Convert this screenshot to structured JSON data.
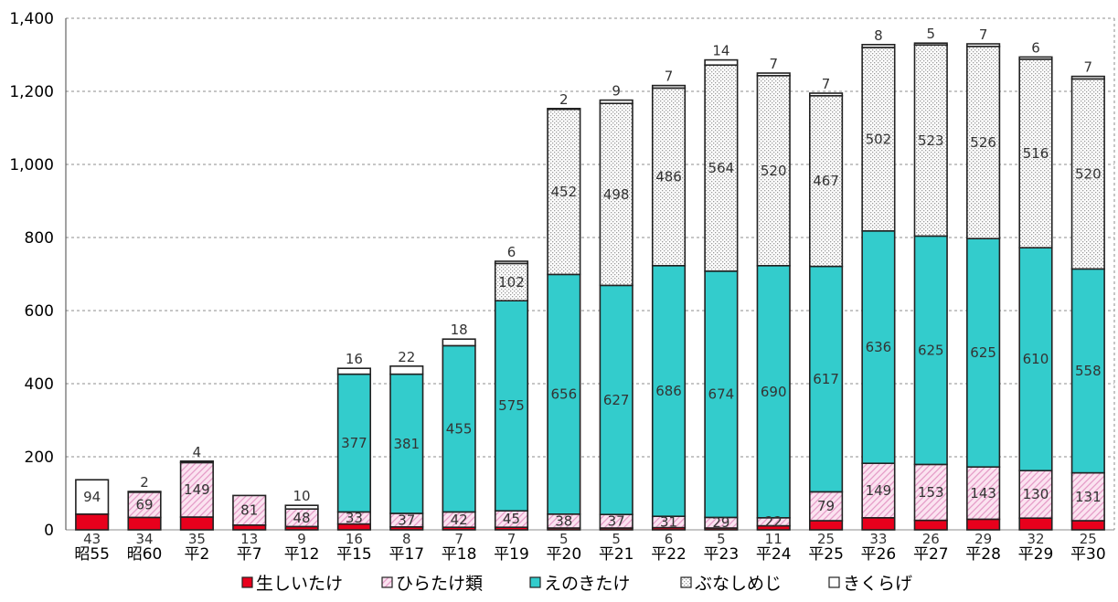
{
  "chart_data": {
    "type": "bar",
    "stacked": true,
    "title": "",
    "xlabel": "",
    "ylabel": "",
    "ylim": [
      0,
      1400
    ],
    "yticks": [
      0,
      200,
      400,
      600,
      800,
      1000,
      1200,
      1400
    ],
    "ytick_labels": [
      "0",
      "200",
      "400",
      "600",
      "800",
      "1,000",
      "1,200",
      "1,400"
    ],
    "grid": "horizontal-dashed",
    "legend_position": "bottom",
    "categories": [
      "昭55",
      "昭60",
      "平2",
      "平7",
      "平12",
      "平15",
      "平17",
      "平18",
      "平19",
      "平20",
      "平21",
      "平22",
      "平23",
      "平24",
      "平25",
      "平26",
      "平27",
      "平28",
      "平29",
      "平30"
    ],
    "series": [
      {
        "name": "生しいたけ",
        "color": "#e8001c",
        "pattern": "solid",
        "values": [
          43,
          34,
          35,
          13,
          9,
          16,
          8,
          7,
          7,
          5,
          5,
          6,
          5,
          11,
          25,
          33,
          26,
          29,
          32,
          25
        ],
        "labels": [
          "43",
          "34",
          "35",
          "13",
          "9",
          "16",
          "8",
          "7",
          "7",
          "5",
          "5",
          "6",
          "5",
          "11",
          "25",
          "33",
          "26",
          "29",
          "32",
          "25"
        ]
      },
      {
        "name": "ひらたけ類",
        "color": "#f7c6e0",
        "pattern": "hatch",
        "values": [
          0,
          69,
          149,
          81,
          48,
          33,
          37,
          42,
          45,
          38,
          37,
          31,
          29,
          22,
          79,
          149,
          153,
          143,
          130,
          131
        ],
        "labels": [
          "",
          "69",
          "149",
          "81",
          "48",
          "33",
          "37",
          "42",
          "45",
          "38",
          "37",
          "31",
          "29",
          "22",
          "79",
          "149",
          "153",
          "143",
          "130",
          "131"
        ]
      },
      {
        "name": "えのきたけ",
        "color": "#33cccc",
        "pattern": "solid",
        "values": [
          0,
          0,
          0,
          0,
          0,
          377,
          381,
          455,
          575,
          656,
          627,
          686,
          674,
          690,
          617,
          636,
          625,
          625,
          610,
          558
        ],
        "labels": [
          "",
          "",
          "",
          "",
          "",
          "377",
          "381",
          "455",
          "575",
          "656",
          "627",
          "686",
          "674",
          "690",
          "617",
          "636",
          "625",
          "625",
          "610",
          "558"
        ]
      },
      {
        "name": "ぶなしめじ",
        "color": "#d9d9d9",
        "pattern": "dots",
        "values": [
          0,
          0,
          0,
          0,
          0,
          0,
          0,
          0,
          102,
          452,
          498,
          486,
          564,
          520,
          467,
          502,
          523,
          526,
          516,
          520
        ],
        "labels": [
          "",
          "",
          "",
          "",
          "",
          "",
          "",
          "",
          "102",
          "452",
          "498",
          "486",
          "564",
          "520",
          "467",
          "502",
          "523",
          "526",
          "516",
          "520"
        ]
      },
      {
        "name": "きくらげ",
        "color": "#ffffff",
        "pattern": "solid",
        "values": [
          94,
          2,
          4,
          0,
          10,
          16,
          22,
          18,
          6,
          2,
          9,
          7,
          14,
          7,
          7,
          8,
          5,
          7,
          6,
          7
        ],
        "labels": [
          "94",
          "2",
          "4",
          "",
          "10",
          "16",
          "22",
          "18",
          "6",
          "2",
          "9",
          "7",
          "14",
          "7",
          "7",
          "8",
          "5",
          "7",
          "6",
          "7"
        ]
      }
    ]
  }
}
